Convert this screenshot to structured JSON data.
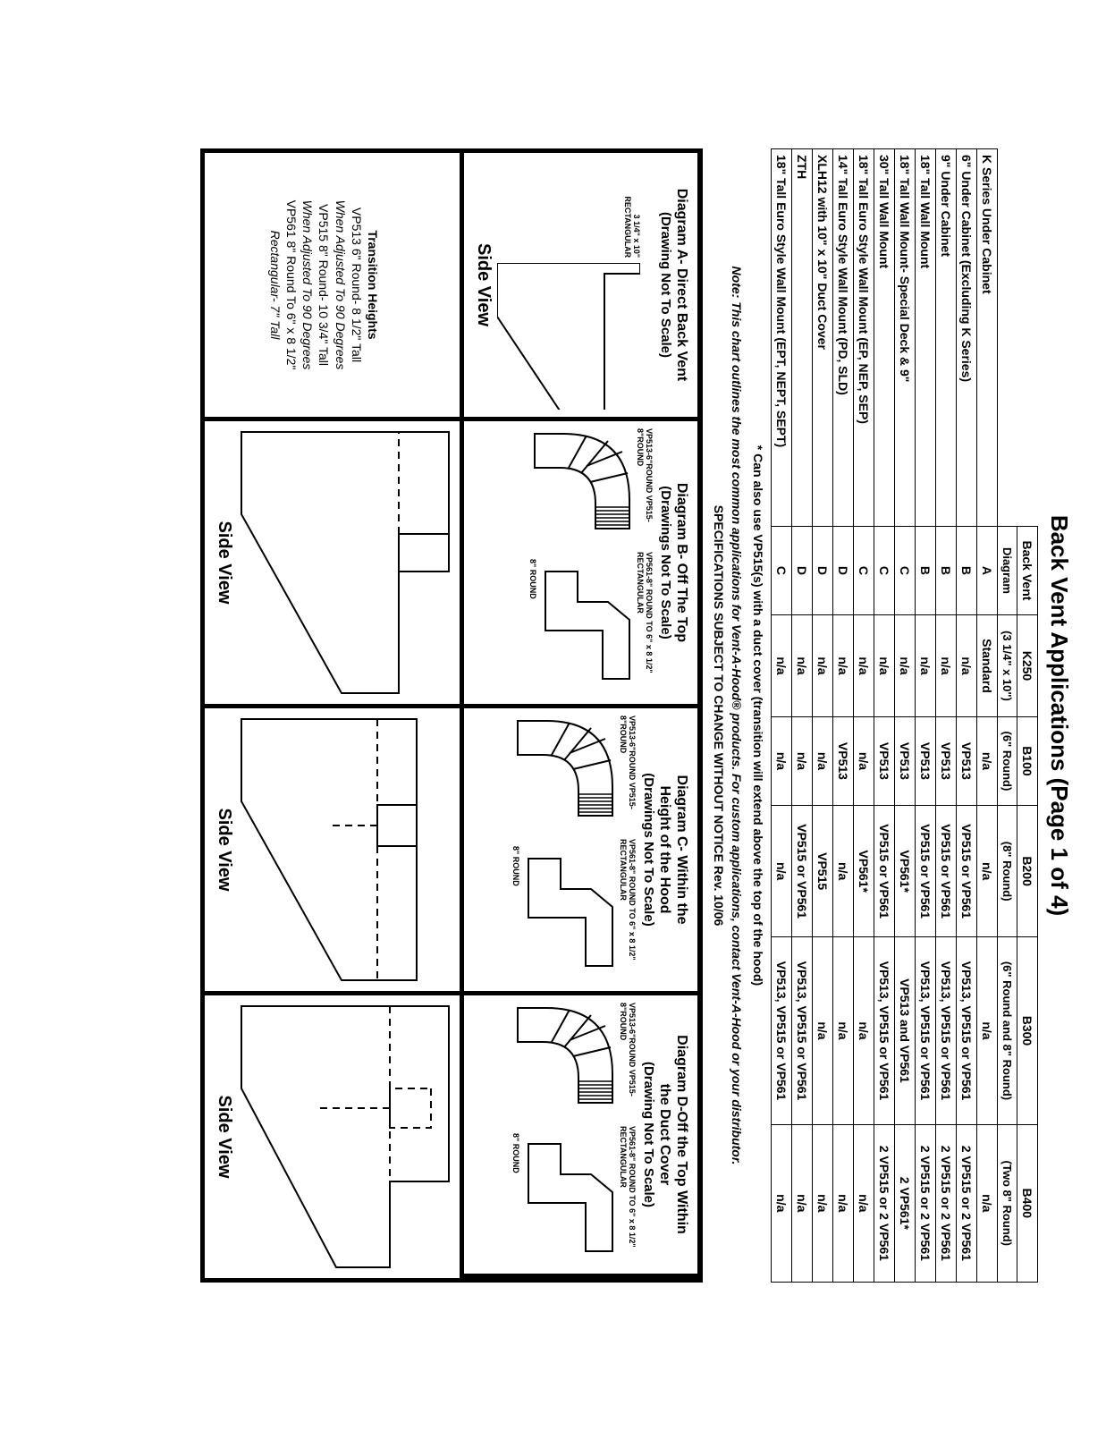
{
  "title": "Back Vent Applications (Page 1 of 4)",
  "table": {
    "header_row1": [
      "",
      "Back Vent",
      "K250",
      "B100",
      "B200",
      "B300",
      "B400"
    ],
    "header_row2": [
      "",
      "Diagram",
      "(3 1/4\" x 10\")",
      "(6\" Round)",
      "(8\" Round)",
      "(6\" Round and 8\" Round)",
      "(Two 8\" Round)"
    ],
    "rows": [
      [
        "K Series Under Cabinet",
        "A",
        "Standard",
        "n/a",
        "n/a",
        "n/a",
        "n/a"
      ],
      [
        "6\" Under Cabinet (Excluding K Series)",
        "B",
        "n/a",
        "VP513",
        "VP515 or VP561",
        "VP513, VP515 or VP561",
        "2 VP515 or 2 VP561"
      ],
      [
        "9\" Under Cabinet",
        "B",
        "n/a",
        "VP513",
        "VP515 or VP561",
        "VP513, VP515 or VP561",
        "2 VP515 or 2 VP561"
      ],
      [
        "18\" Tall Wall Mount",
        "B",
        "n/a",
        "VP513",
        "VP515 or VP561",
        "VP513, VP515 or VP561",
        "2 VP515 or 2 VP561"
      ],
      [
        "18\" Tall Wall Mount- Special Deck & 9\"",
        "C",
        "n/a",
        "VP513",
        "VP561*",
        "VP513 and VP561",
        "2 VP561*"
      ],
      [
        "30\" Tall Wall Mount",
        "C",
        "n/a",
        "VP513",
        "VP515 or VP561",
        "VP513, VP515 or VP561",
        "2 VP515 or 2 VP561"
      ],
      [
        "18\" Tall Euro Style Wall Mount (EP, NEP, SEP)",
        "C",
        "n/a",
        "n/a",
        "VP561*",
        "n/a",
        "n/a"
      ],
      [
        "14\" Tall Euro Style Wall Mount (PD, SLD)",
        "D",
        "n/a",
        "VP513",
        "n/a",
        "n/a",
        "n/a"
      ],
      [
        "XLH12 with 10\" x 10\" Duct Cover",
        "D",
        "n/a",
        "n/a",
        "VP515",
        "n/a",
        "n/a"
      ],
      [
        "ZTH",
        "D",
        "n/a",
        "n/a",
        "VP515 or VP561",
        "VP513, VP515 or VP561",
        "n/a"
      ],
      [
        "18\" Tall Euro Style Wall Mount (EPT, NEPT, SEPT)",
        "C",
        "n/a",
        "n/a",
        "n/a",
        "VP513, VP515 or VP561",
        "n/a"
      ]
    ]
  },
  "footnote_star": "* Can also use VP515(s) with a duct cover (transition will extend above the top of the hood)",
  "note_line": "Note: This chart outlines the most common applications for Vent-A-Hood® products. For custom applications, contact Vent-A-Hood or your distributor.",
  "spec_change": "SPECIFICATIONS SUBJECT TO CHANGE WITHOUT NOTICE Rev. 10/06",
  "diagA": {
    "title1": "Diagram A- Direct Back Vent",
    "title2": "(Drawing Not To Scale)",
    "rect_label": "3 1/4\" x 10\"\nRECTANGULAR",
    "sv": "Side View"
  },
  "diagB": {
    "title1": "Diagram B- Off The Top",
    "title2": "(Drawings Not To Scale)",
    "elbow1": "VP513-6\"ROUND\nVP515-8\"ROUND",
    "elbow2": "VP561-8\" ROUND\nTO 6\" x 8 1/2\"\nRECTANGULAR",
    "base": "8\" ROUND"
  },
  "diagC": {
    "title1": "Diagram C- Within the",
    "title2": "Height of the Hood",
    "title3": "(Drawings Not To Scale)",
    "elbow1": "VP513-6\"ROUND\nVP515-8\"ROUND",
    "elbow2": "VP561-8\" ROUND\nTO 6\" x 8 1/2\"\nRECTANGULAR",
    "base": "8\" ROUND"
  },
  "diagD": {
    "title1": "Diagram D-Off the Top Within",
    "title2": "the Duct Cover",
    "title3": "(Drawing Not To Scale)",
    "elbow1": "VP513-6\"ROUND\nVP515-8\"ROUND",
    "elbow2": "VP561-8\" ROUND\nTO 6\" x 8 1/2\"\nRECTANGULAR",
    "base": "8\" ROUND"
  },
  "transition": {
    "hd": "Transition Heights",
    "l1": "VP513 6\" Round-  8 1/2\" Tall",
    "l2": "When Adjusted To 90 Degrees",
    "l3": "VP515 8\" Round-  10 3/4\" Tall",
    "l4": "When Adjusted To 90 Degrees",
    "l5": "VP561 8\" Round To 6\" x 8 1/2\"",
    "l6": "Rectangular-  7\" Tall"
  },
  "sv": "Side View"
}
